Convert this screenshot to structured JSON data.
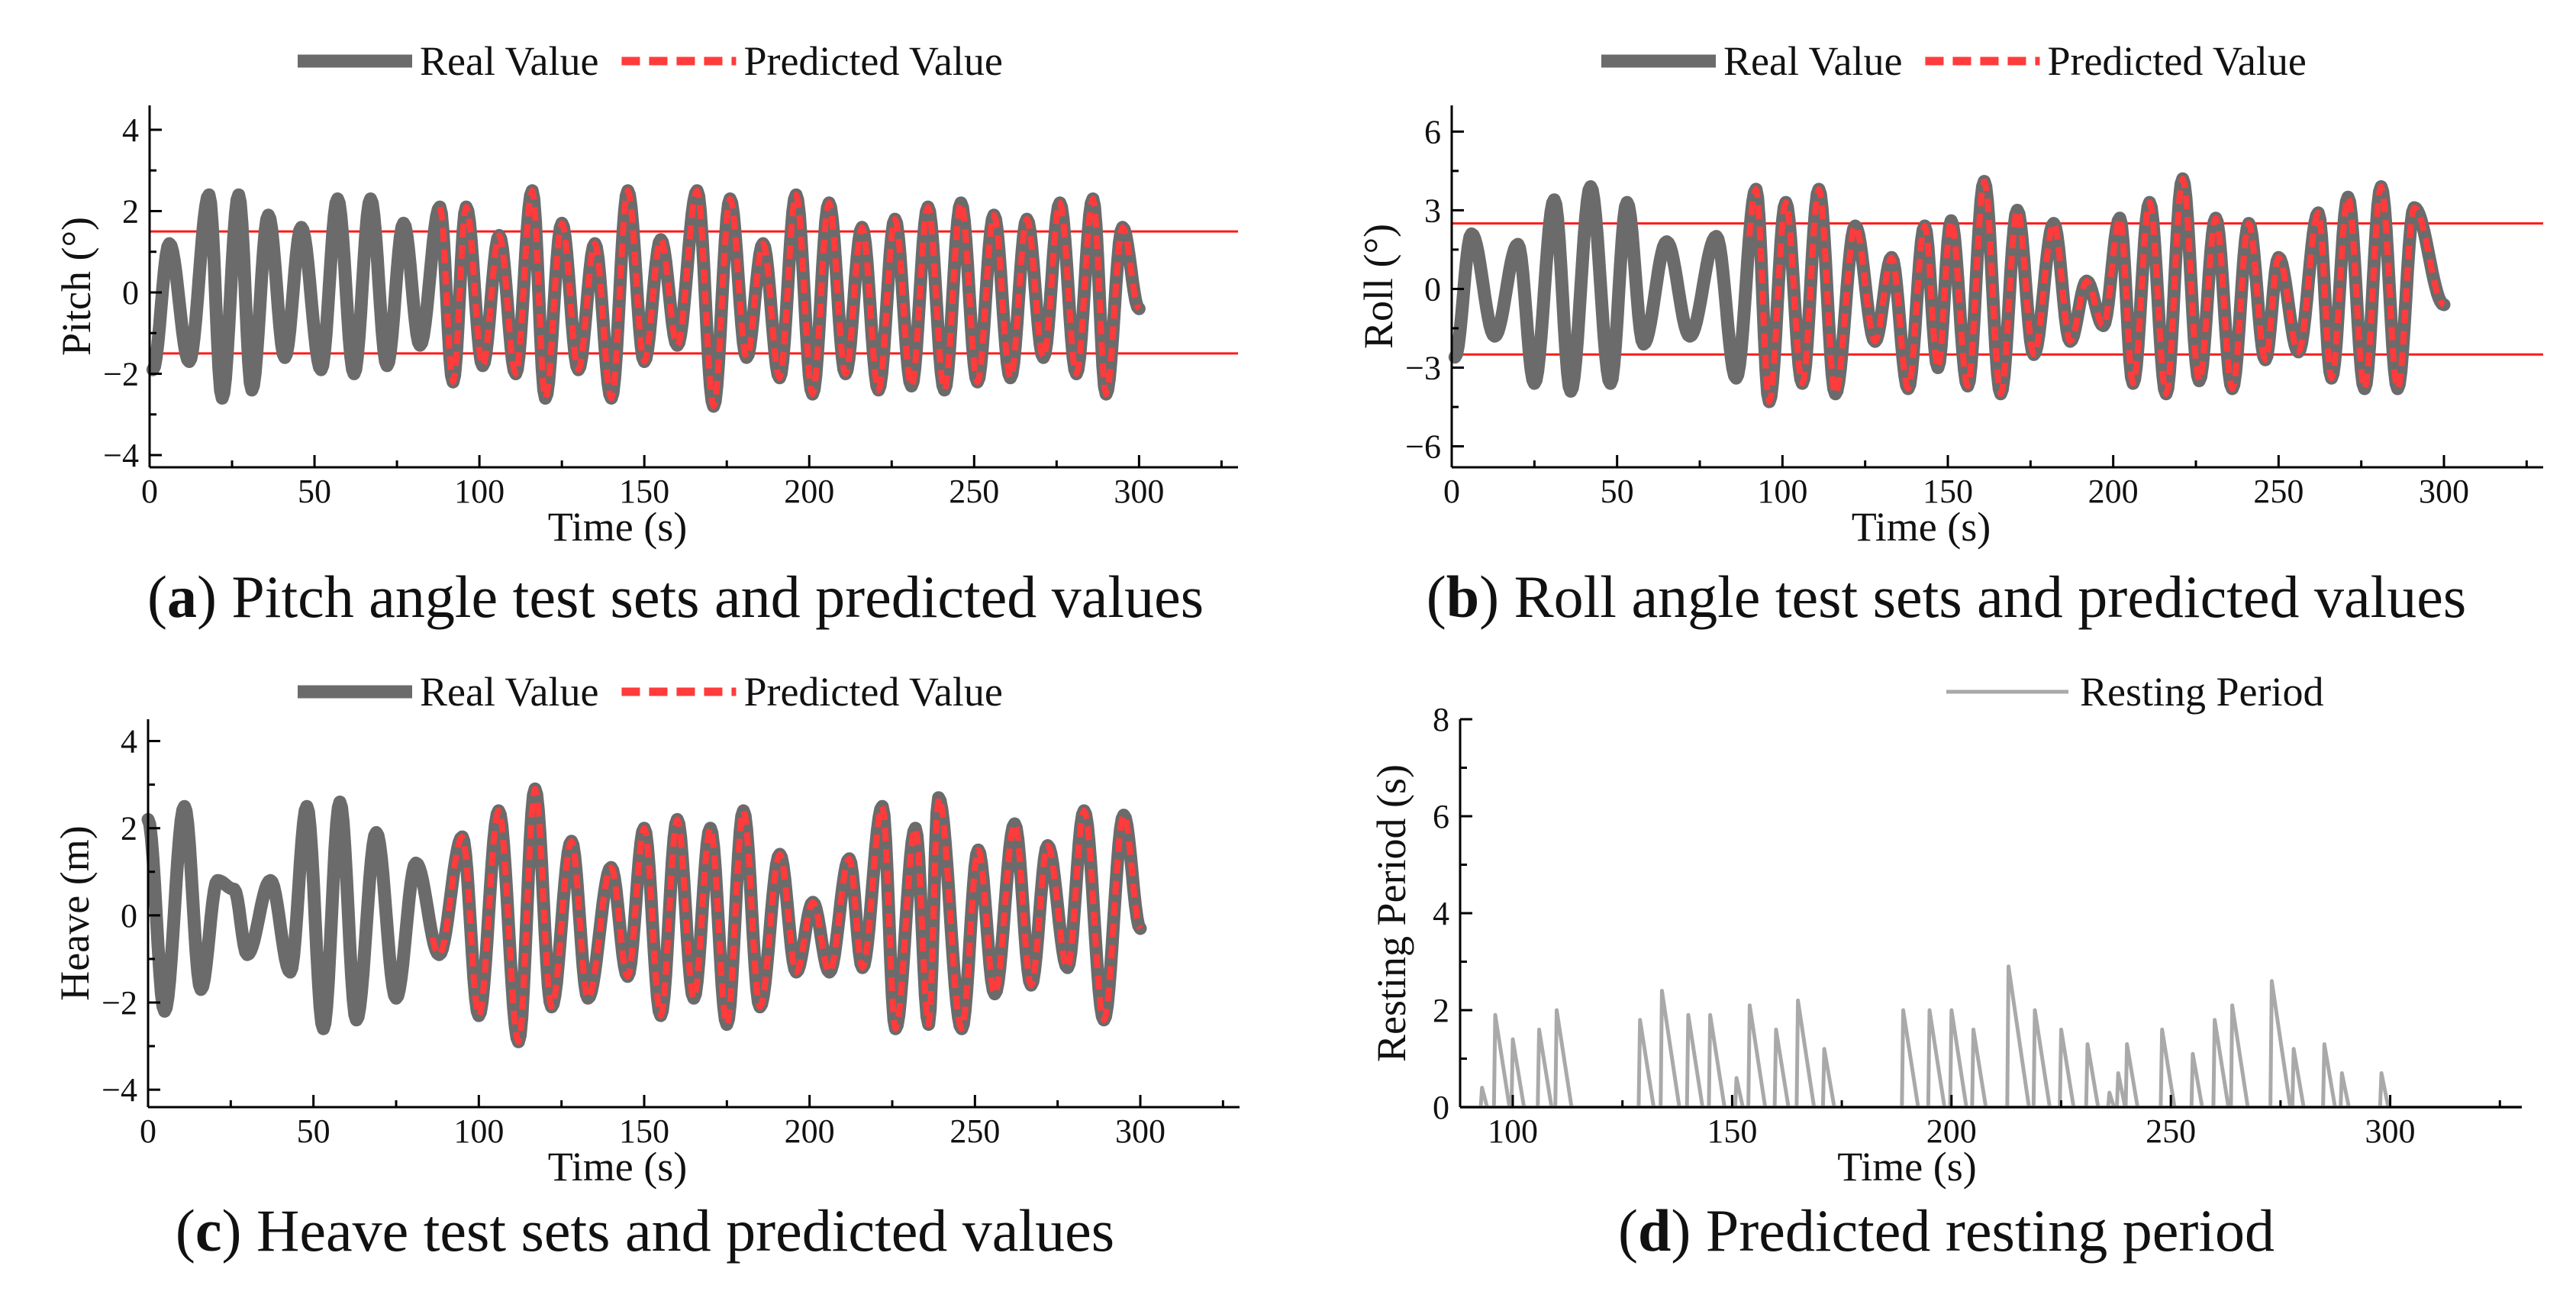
{
  "colors": {
    "real": "#6b6b6b",
    "predicted": "#ff3b3b",
    "threshold": "#ff1a1a",
    "resting": "#a9a9a9"
  },
  "chart_data": [
    {
      "id": "a",
      "type": "line",
      "caption": {
        "letter": "a",
        "text": "Pitch angle test sets and predicted values"
      },
      "xlabel": "Time (s)",
      "ylabel": "Pitch (°)",
      "xlim": [
        0,
        330
      ],
      "ylim": [
        -4.3,
        4.6
      ],
      "xticks": [
        0,
        50,
        100,
        150,
        200,
        250,
        300
      ],
      "yticks": [
        -4,
        -2,
        0,
        2,
        4
      ],
      "ytick_labels": [
        "−4",
        "−2",
        "0",
        "2",
        "4"
      ],
      "thresholds": [
        1.5,
        -1.5
      ],
      "legend": [
        {
          "name": "Real Value",
          "style": "solid"
        },
        {
          "name": "Predicted Value",
          "style": "dashed"
        }
      ],
      "series": [
        {
          "name": "Real Value",
          "x_range": [
            0,
            300
          ],
          "peaks": [
            [
              6,
              1.2
            ],
            [
              18,
              2.4
            ],
            [
              27,
              2.4
            ],
            [
              36,
              1.9
            ],
            [
              46,
              1.6
            ],
            [
              57,
              2.3
            ],
            [
              67,
              2.3
            ],
            [
              77,
              1.7
            ],
            [
              88,
              2.1
            ],
            [
              96,
              2.1
            ],
            [
              106,
              1.4
            ],
            [
              116,
              2.5
            ],
            [
              125,
              1.7
            ],
            [
              135,
              1.2
            ],
            [
              145,
              2.5
            ],
            [
              155,
              1.3
            ],
            [
              166,
              2.5
            ],
            [
              176,
              2.3
            ],
            [
              186,
              1.2
            ],
            [
              196,
              2.4
            ],
            [
              206,
              2.2
            ],
            [
              216,
              1.6
            ],
            [
              226,
              1.8
            ],
            [
              236,
              2.1
            ],
            [
              246,
              2.2
            ],
            [
              256,
              1.9
            ],
            [
              266,
              1.8
            ],
            [
              276,
              2.2
            ],
            [
              286,
              2.3
            ],
            [
              295,
              1.6
            ]
          ],
          "troughs": [
            [
              1,
              -1.9
            ],
            [
              12,
              -1.7
            ],
            [
              22,
              -2.6
            ],
            [
              31,
              -2.4
            ],
            [
              41,
              -1.6
            ],
            [
              52,
              -1.9
            ],
            [
              62,
              -2.0
            ],
            [
              72,
              -1.8
            ],
            [
              82,
              -1.3
            ],
            [
              92,
              -2.2
            ],
            [
              101,
              -1.8
            ],
            [
              111,
              -2.0
            ],
            [
              120,
              -2.6
            ],
            [
              130,
              -1.9
            ],
            [
              140,
              -2.6
            ],
            [
              150,
              -1.7
            ],
            [
              160,
              -1.3
            ],
            [
              171,
              -2.8
            ],
            [
              181,
              -1.6
            ],
            [
              191,
              -2.1
            ],
            [
              201,
              -2.5
            ],
            [
              211,
              -2.0
            ],
            [
              221,
              -2.4
            ],
            [
              231,
              -2.3
            ],
            [
              241,
              -2.4
            ],
            [
              251,
              -2.2
            ],
            [
              261,
              -2.1
            ],
            [
              271,
              -1.6
            ],
            [
              281,
              -2.0
            ],
            [
              290,
              -2.5
            ],
            [
              300,
              -0.4
            ]
          ]
        },
        {
          "name": "Predicted Value",
          "x_range": [
            88,
            300
          ],
          "note": "overlays Real Value"
        }
      ]
    },
    {
      "id": "b",
      "type": "line",
      "caption": {
        "letter": "b",
        "text": "Roll angle test sets and predicted values"
      },
      "xlabel": "Time (s)",
      "ylabel": "Roll (°)",
      "xlim": [
        0,
        330
      ],
      "ylim": [
        -6.8,
        7.0
      ],
      "xticks": [
        0,
        50,
        100,
        150,
        200,
        250,
        300
      ],
      "yticks": [
        -6,
        -3,
        0,
        3,
        6
      ],
      "ytick_labels": [
        "−6",
        "−3",
        "0",
        "3",
        "6"
      ],
      "thresholds": [
        2.5,
        -2.5
      ],
      "legend": [
        {
          "name": "Real Value",
          "style": "solid"
        },
        {
          "name": "Predicted Value",
          "style": "dashed"
        }
      ],
      "series": [
        {
          "name": "Real Value",
          "x_range": [
            0,
            300
          ],
          "peaks": [
            [
              6,
              2.1
            ],
            [
              20,
              1.7
            ],
            [
              31,
              3.4
            ],
            [
              42,
              3.9
            ],
            [
              53,
              3.3
            ],
            [
              65,
              1.8
            ],
            [
              80,
              2.0
            ],
            [
              92,
              3.8
            ],
            [
              101,
              3.3
            ],
            [
              111,
              3.8
            ],
            [
              122,
              2.4
            ],
            [
              133,
              1.2
            ],
            [
              143,
              2.4
            ],
            [
              151,
              2.6
            ],
            [
              161,
              4.1
            ],
            [
              171,
              3.0
            ],
            [
              182,
              2.5
            ],
            [
              192,
              0.3
            ],
            [
              202,
              2.7
            ],
            [
              211,
              3.3
            ],
            [
              221,
              4.2
            ],
            [
              231,
              2.7
            ],
            [
              241,
              2.5
            ],
            [
              250,
              1.2
            ],
            [
              262,
              2.9
            ],
            [
              271,
              3.5
            ],
            [
              281,
              3.9
            ],
            [
              291,
              3.1
            ]
          ],
          "troughs": [
            [
              1,
              -2.6
            ],
            [
              13,
              -1.8
            ],
            [
              25,
              -3.6
            ],
            [
              36,
              -3.9
            ],
            [
              48,
              -3.6
            ],
            [
              58,
              -2.1
            ],
            [
              72,
              -1.8
            ],
            [
              86,
              -3.4
            ],
            [
              96,
              -4.3
            ],
            [
              106,
              -3.6
            ],
            [
              116,
              -4.0
            ],
            [
              128,
              -2.0
            ],
            [
              138,
              -3.8
            ],
            [
              147,
              -3.0
            ],
            [
              156,
              -3.7
            ],
            [
              166,
              -4.0
            ],
            [
              176,
              -2.5
            ],
            [
              187,
              -2.0
            ],
            [
              197,
              -1.4
            ],
            [
              206,
              -3.6
            ],
            [
              216,
              -4.0
            ],
            [
              226,
              -3.5
            ],
            [
              236,
              -3.8
            ],
            [
              246,
              -2.7
            ],
            [
              256,
              -2.4
            ],
            [
              266,
              -3.4
            ],
            [
              276,
              -3.8
            ],
            [
              286,
              -3.8
            ],
            [
              300,
              -0.6
            ]
          ]
        },
        {
          "name": "Predicted Value",
          "x_range": [
            90,
            300
          ],
          "note": "overlays Real Value"
        }
      ]
    },
    {
      "id": "c",
      "type": "line",
      "caption": {
        "letter": "c",
        "text": "Heave test sets and predicted values"
      },
      "xlabel": "Time (s)",
      "ylabel": "Heave (m)",
      "xlim": [
        0,
        330
      ],
      "ylim": [
        -4.4,
        4.5
      ],
      "xticks": [
        0,
        50,
        100,
        150,
        200,
        250,
        300
      ],
      "yticks": [
        -4,
        -2,
        0,
        2,
        4
      ],
      "ytick_labels": [
        "−4",
        "−2",
        "0",
        "2",
        "4"
      ],
      "thresholds": [],
      "legend": [
        {
          "name": "Real Value",
          "style": "solid"
        },
        {
          "name": "Predicted Value",
          "style": "dashed"
        }
      ],
      "series": [
        {
          "name": "Real Value",
          "x_range": [
            0,
            300
          ],
          "peaks": [
            [
              0,
              2.2
            ],
            [
              11,
              2.5
            ],
            [
              21,
              0.8
            ],
            [
              26,
              0.6
            ],
            [
              37,
              0.8
            ],
            [
              48,
              2.5
            ],
            [
              58,
              2.6
            ],
            [
              69,
              1.9
            ],
            [
              81,
              1.2
            ],
            [
              95,
              1.8
            ],
            [
              106,
              2.4
            ],
            [
              117,
              2.9
            ],
            [
              128,
              1.7
            ],
            [
              140,
              1.1
            ],
            [
              150,
              2.0
            ],
            [
              160,
              2.2
            ],
            [
              170,
              2.0
            ],
            [
              180,
              2.4
            ],
            [
              191,
              1.4
            ],
            [
              201,
              0.3
            ],
            [
              212,
              1.3
            ],
            [
              222,
              2.5
            ],
            [
              232,
              2.0
            ],
            [
              239,
              2.7
            ],
            [
              251,
              1.5
            ],
            [
              262,
              2.1
            ],
            [
              272,
              1.6
            ],
            [
              283,
              2.4
            ],
            [
              295,
              2.3
            ]
          ],
          "troughs": [
            [
              5,
              -2.2
            ],
            [
              16,
              -1.7
            ],
            [
              30,
              -0.9
            ],
            [
              43,
              -1.3
            ],
            [
              53,
              -2.6
            ],
            [
              63,
              -2.4
            ],
            [
              75,
              -1.9
            ],
            [
              88,
              -0.9
            ],
            [
              100,
              -2.3
            ],
            [
              112,
              -2.9
            ],
            [
              122,
              -2.1
            ],
            [
              133,
              -1.9
            ],
            [
              145,
              -1.4
            ],
            [
              155,
              -2.3
            ],
            [
              165,
              -1.9
            ],
            [
              175,
              -2.5
            ],
            [
              185,
              -2.1
            ],
            [
              196,
              -1.3
            ],
            [
              206,
              -1.3
            ],
            [
              216,
              -1.2
            ],
            [
              226,
              -2.6
            ],
            [
              236,
              -2.5
            ],
            [
              246,
              -2.6
            ],
            [
              256,
              -1.8
            ],
            [
              267,
              -1.6
            ],
            [
              278,
              -1.2
            ],
            [
              289,
              -2.4
            ],
            [
              300,
              -0.3
            ]
          ]
        },
        {
          "name": "Predicted Value",
          "x_range": [
            86,
            300
          ],
          "note": "overlays Real Value"
        }
      ]
    },
    {
      "id": "d",
      "type": "line",
      "caption": {
        "letter": "d",
        "text": "Predicted resting period"
      },
      "xlabel": "Time (s)",
      "ylabel": "Resting Period (s)",
      "xlim": [
        88,
        330
      ],
      "ylim": [
        0,
        8
      ],
      "xticks": [
        100,
        150,
        200,
        250,
        300
      ],
      "yticks": [
        0,
        2,
        4,
        6,
        8
      ],
      "ytick_labels": [
        "0",
        "2",
        "4",
        "6",
        "8"
      ],
      "thresholds": [],
      "legend": [
        {
          "name": "Resting Period",
          "style": "solid"
        }
      ],
      "series": [
        {
          "name": "Resting Period",
          "spikes": [
            [
              93,
              0.4
            ],
            [
              96,
              1.9
            ],
            [
              100,
              1.4
            ],
            [
              106,
              1.6
            ],
            [
              110,
              2.0
            ],
            [
              129,
              1.8
            ],
            [
              134,
              2.4
            ],
            [
              140,
              1.9
            ],
            [
              145,
              1.9
            ],
            [
              151,
              0.6
            ],
            [
              154,
              2.1
            ],
            [
              160,
              1.6
            ],
            [
              165,
              2.2
            ],
            [
              171,
              1.2
            ],
            [
              189,
              2.0
            ],
            [
              195,
              2.0
            ],
            [
              200,
              2.0
            ],
            [
              205,
              1.6
            ],
            [
              213,
              2.9
            ],
            [
              219,
              2.0
            ],
            [
              225,
              1.6
            ],
            [
              231,
              1.3
            ],
            [
              236,
              0.3
            ],
            [
              238,
              0.7
            ],
            [
              240,
              1.3
            ],
            [
              248,
              1.6
            ],
            [
              255,
              1.1
            ],
            [
              260,
              1.8
            ],
            [
              264,
              2.1
            ],
            [
              273,
              2.6
            ],
            [
              278,
              1.2
            ],
            [
              285,
              1.3
            ],
            [
              289,
              0.7
            ],
            [
              298,
              0.7
            ]
          ]
        }
      ]
    }
  ]
}
